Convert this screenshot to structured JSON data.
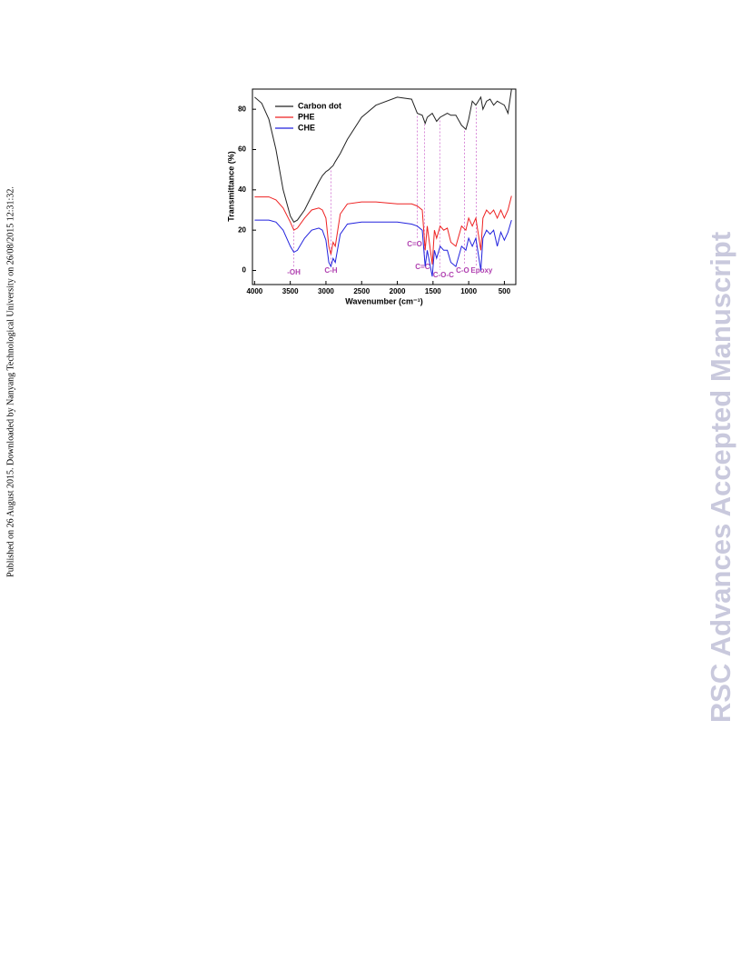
{
  "side_note": "Published on 26 August 2015. Downloaded by Nanyang Technological University on 26/08/2015 12:31:32.",
  "watermark": "RSC Advances Accepted Manuscript",
  "chart_data": {
    "type": "line",
    "x_label": "Wavenumber (cm⁻¹)",
    "y_label": "Transmittance (%)",
    "x": [
      4000,
      3900,
      3800,
      3700,
      3600,
      3500,
      3450,
      3400,
      3300,
      3200,
      3100,
      3050,
      3000,
      2960,
      2930,
      2900,
      2870,
      2800,
      2700,
      2500,
      2300,
      2000,
      1800,
      1720,
      1650,
      1610,
      1580,
      1510,
      1480,
      1450,
      1400,
      1350,
      1300,
      1250,
      1180,
      1100,
      1040,
      1000,
      950,
      900,
      830,
      800,
      750,
      700,
      650,
      600,
      550,
      500,
      450,
      400
    ],
    "series": [
      {
        "name": "Carbon dot",
        "color": "#222222",
        "values": [
          86,
          83,
          75,
          60,
          40,
          27,
          24,
          25,
          30,
          37,
          44,
          47,
          49,
          50,
          51,
          52,
          54,
          58,
          65,
          76,
          82,
          86,
          85,
          78,
          77,
          73,
          76,
          78,
          76,
          74,
          76,
          77,
          78,
          77,
          77,
          72,
          70,
          75,
          84,
          82,
          86,
          80,
          84,
          85,
          82,
          84,
          83,
          82,
          78,
          90
        ]
      },
      {
        "name": "PHE",
        "color": "#ee2222",
        "values": [
          36.5,
          36.5,
          36.5,
          35,
          31,
          24,
          20,
          21,
          26,
          30,
          31,
          30,
          26,
          12,
          8,
          14,
          12,
          28,
          33,
          34,
          34,
          33,
          33,
          32,
          30,
          10,
          22,
          3,
          20,
          16,
          22,
          20,
          21,
          14,
          12,
          22,
          20,
          26,
          22,
          26,
          10,
          26,
          30,
          28,
          30,
          26,
          30,
          26,
          30,
          37
        ]
      },
      {
        "name": "CHE",
        "color": "#2222dd",
        "values": [
          25,
          25,
          25,
          24,
          20,
          12,
          9,
          10,
          16,
          20,
          21,
          20,
          15,
          4,
          2,
          6,
          4,
          18,
          23,
          24,
          24,
          24,
          23,
          22,
          20,
          2,
          10,
          -3,
          10,
          6,
          12,
          10,
          10,
          4,
          2,
          12,
          10,
          16,
          12,
          16,
          0,
          16,
          20,
          18,
          20,
          12,
          19,
          15,
          19,
          25
        ]
      }
    ],
    "annotations": [
      {
        "text": "-OH",
        "x": 3450
      },
      {
        "text": "C-H",
        "x": 2930
      },
      {
        "text": "C=O",
        "x": 1720
      },
      {
        "text": "C=C",
        "x": 1620
      },
      {
        "text": "C-O-C",
        "x": 1405
      },
      {
        "text": "C-O",
        "x": 1060
      },
      {
        "text": "Epoxy",
        "x": 895
      }
    ],
    "annotation_color": "#b040b0",
    "xlim": [
      4030,
      340
    ],
    "ylim": [
      -7,
      90
    ],
    "xticks": [
      4000,
      3500,
      3000,
      2500,
      2000,
      1500,
      1000,
      500
    ],
    "yticks": [
      0,
      20,
      40,
      60,
      80
    ]
  }
}
